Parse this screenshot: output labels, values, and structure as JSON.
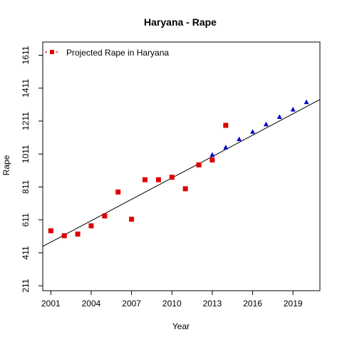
{
  "chart_data": {
    "type": "scatter",
    "title": "Haryana  -  Rape",
    "xlabel": "Year",
    "ylabel": "Rape",
    "xlim": [
      2000.4,
      2021.0
    ],
    "ylim": [
      181,
      1691
    ],
    "x_ticks": [
      2001,
      2004,
      2007,
      2010,
      2013,
      2016,
      2019
    ],
    "x_tick_labels": [
      "2001",
      "2004",
      "2007",
      "2010",
      "2013",
      "2016",
      "2019"
    ],
    "y_ticks": [
      211,
      411,
      611,
      811,
      1011,
      1211,
      1411,
      1611
    ],
    "y_tick_labels": [
      "211",
      "411",
      "611",
      "811",
      "1011",
      "1211",
      "1411",
      "1611"
    ],
    "legend": {
      "position": "top-left",
      "label": "Projected Rape  in  Haryana"
    },
    "series": [
      {
        "color": "#dd0000",
        "marker": "square",
        "x": [
          2001,
          2002,
          2003,
          2004,
          2005,
          2006,
          2007,
          2008,
          2009,
          2010,
          2011,
          2012,
          2013,
          2014
        ],
        "values": [
          545,
          515,
          525,
          575,
          635,
          780,
          615,
          855,
          855,
          870,
          800,
          945,
          975,
          1185
        ]
      },
      {
        "color": "#0000cc",
        "marker": "triangle",
        "x": [
          2013,
          2014,
          2015,
          2016,
          2017,
          2018,
          2019,
          2020
        ],
        "values": [
          1005,
          1050,
          1100,
          1145,
          1190,
          1235,
          1280,
          1325
        ]
      }
    ],
    "trend_line": {
      "color": "#000000",
      "x": [
        2000.4,
        2021.0
      ],
      "values": [
        450,
        1342
      ]
    }
  }
}
